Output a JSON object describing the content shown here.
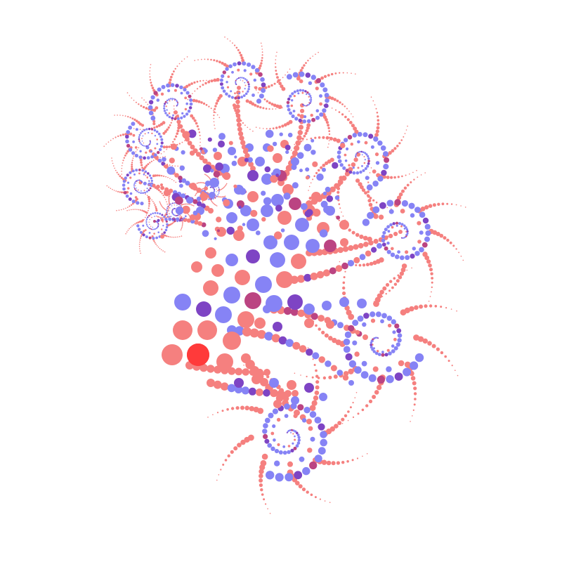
{
  "palette": {
    "background": "#ffffff",
    "salmon": "#f5807f",
    "periwinkle": "#8683f5",
    "violet": "#7e44c4",
    "magenta": "#bb4482",
    "red": "#ff3a3a"
  },
  "artwork": {
    "subject": "spiral-dot-fractal",
    "elements": [
      "main-body-cluster",
      "spiral-arms",
      "tentacle-spikes",
      "red-focal-dot"
    ]
  }
}
